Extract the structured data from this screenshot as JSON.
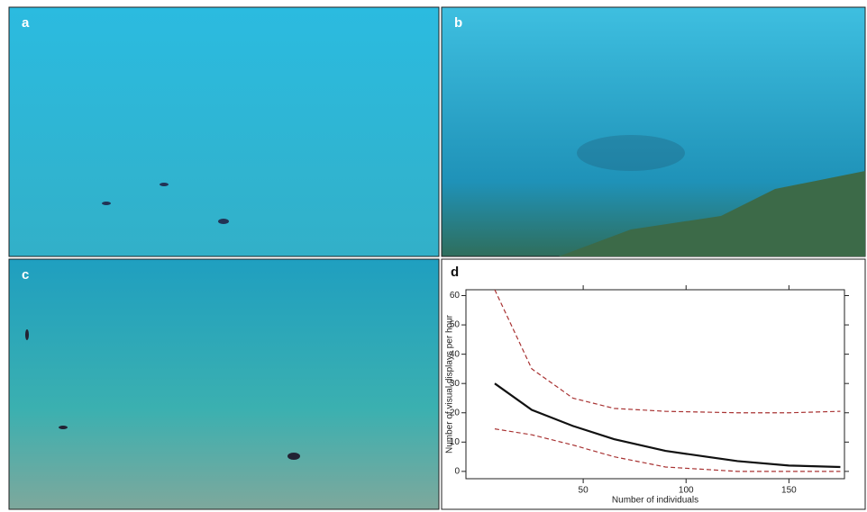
{
  "panels": [
    "a",
    "b",
    "c"
  ],
  "chart_data": {
    "type": "line",
    "panel_label": "d",
    "xlabel": "Number of individuals",
    "ylabel": "Number of visual displays per hour",
    "x": [
      7,
      25,
      45,
      65,
      90,
      125,
      150,
      175
    ],
    "series": [
      {
        "color": "#111111",
        "style": "solid",
        "values": [
          30,
          21,
          15.5,
          11,
          7,
          3.5,
          2,
          1.5
        ]
      },
      {
        "color": "#a83232",
        "style": "dashed",
        "values": [
          62,
          35,
          25,
          21.5,
          20.5,
          20,
          20,
          20.5
        ]
      },
      {
        "color": "#a83232",
        "style": "dashed",
        "values": [
          14.5,
          12.5,
          9,
          5,
          1.5,
          0,
          0,
          0
        ]
      }
    ],
    "xlim": [
      -7,
      177
    ],
    "ylim": [
      -2.5,
      62
    ],
    "xticks": [
      50,
      100,
      150
    ],
    "yticks": [
      0,
      10,
      20,
      30,
      40,
      50,
      60
    ]
  }
}
